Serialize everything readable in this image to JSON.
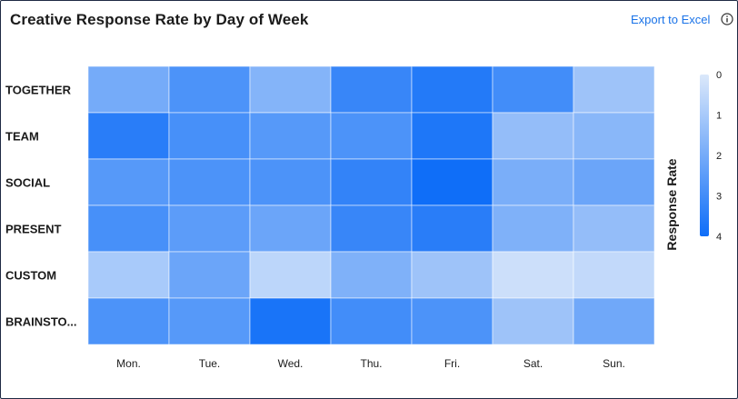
{
  "header": {
    "title": "Creative Response Rate by Day of Week",
    "export_label": "Export to Excel"
  },
  "chart_data": {
    "type": "heatmap",
    "title": "Creative Response Rate by Day of Week",
    "x_categories": [
      "Mon.",
      "Tue.",
      "Wed.",
      "Thu.",
      "Fri.",
      "Sat.",
      "Sun."
    ],
    "y_categories": [
      "TOGETHER",
      "TEAM",
      "SOCIAL",
      "PRESENT",
      "CUSTOM",
      "BRAINSTO..."
    ],
    "values": [
      [
        2.0,
        2.8,
        1.7,
        3.2,
        3.6,
        3.0,
        1.2
      ],
      [
        3.5,
        2.9,
        2.6,
        2.8,
        3.7,
        1.4,
        1.6
      ],
      [
        2.6,
        2.8,
        2.8,
        3.3,
        4.2,
        1.9,
        2.2
      ],
      [
        2.9,
        2.5,
        2.2,
        3.2,
        3.5,
        1.8,
        1.4
      ],
      [
        1.0,
        2.2,
        0.6,
        1.8,
        1.2,
        0.3,
        0.5
      ],
      [
        2.8,
        2.6,
        3.8,
        3.0,
        2.8,
        1.2,
        2.1
      ]
    ],
    "colorbar": {
      "label": "Response Rate",
      "ticks": [
        "0",
        "1",
        "2",
        "3",
        "4"
      ],
      "range": [
        0,
        4
      ],
      "color_low": "#dbe8fa",
      "color_high": "#0f6ef8"
    }
  }
}
